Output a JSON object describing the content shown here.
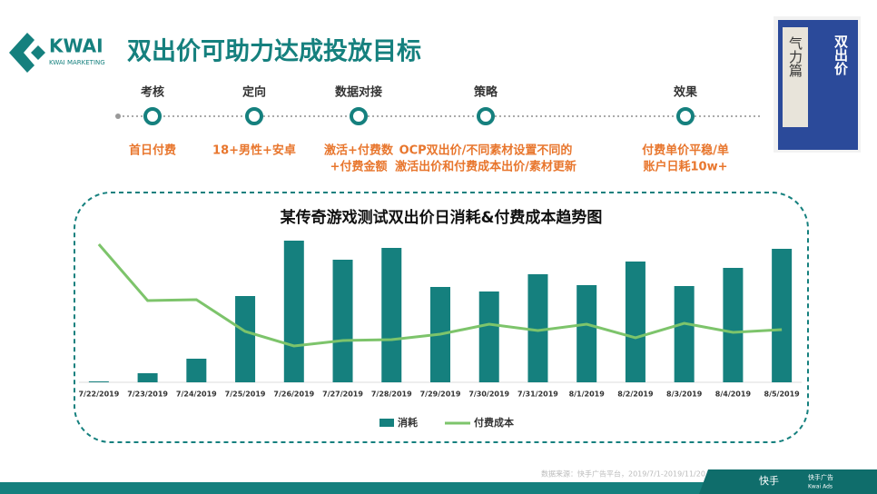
{
  "header": {
    "logo": "KWAI",
    "logo_sub": "KWAI MARKETING",
    "title": "双出价可助力达成投放目标"
  },
  "timeline": [
    {
      "label": "考核",
      "detail": [
        "首日付费"
      ]
    },
    {
      "label": "定向",
      "detail": [
        "18+男性+安卓"
      ]
    },
    {
      "label": "数据对接",
      "detail": [
        "激活+付费数",
        "+付费金额"
      ]
    },
    {
      "label": "策略",
      "detail": [
        "OCP双出价/不同素材设置不同的",
        "激活出价和付费成本出价/素材更新"
      ]
    },
    {
      "label": "效果",
      "detail": [
        "付费单价平稳/单",
        "账户日耗10w+"
      ]
    }
  ],
  "book": {
    "title": "双出价",
    "subtitle": "气力篇"
  },
  "chart_data": {
    "type": "bar-line",
    "title": "某传奇游戏测试双出价日消耗&付费成本趋势图",
    "categories": [
      "7/22/2019",
      "7/23/2019",
      "7/24/2019",
      "7/25/2019",
      "7/26/2019",
      "7/27/2019",
      "7/28/2019",
      "7/29/2019",
      "7/30/2019",
      "7/31/2019",
      "8/1/2019",
      "8/2/2019",
      "8/3/2019",
      "8/4/2019",
      "8/5/2019"
    ],
    "series": [
      {
        "name": "消耗",
        "type": "bar",
        "color": "#15807e",
        "values": [
          1,
          10,
          26,
          95,
          156,
          135,
          148,
          105,
          100,
          119,
          107,
          133,
          106,
          126,
          147
        ]
      },
      {
        "name": "付费成本",
        "type": "line",
        "color": "#7dc46b",
        "values": [
          152,
          90,
          91,
          56,
          40,
          46,
          47,
          53,
          64,
          57,
          64,
          49,
          65,
          55,
          58
        ]
      }
    ],
    "ylim": [
      0,
      160
    ],
    "legend": "bottom"
  },
  "footer": {
    "source": "数据来源：快手广告平台，2019/7/1-2019/11/20",
    "brand": "快手",
    "brand2": "快手广告",
    "brand3": "Kwai Ads"
  }
}
